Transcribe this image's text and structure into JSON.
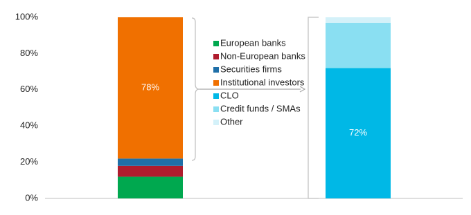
{
  "chart_data": {
    "type": "stacked-bar",
    "categories": [
      null,
      null
    ],
    "series": [
      {
        "name": "European banks",
        "color": "#00a84f",
        "values": [
          12,
          0
        ]
      },
      {
        "name": "Non-European banks",
        "color": "#b01c2e",
        "values": [
          6,
          0
        ]
      },
      {
        "name": "Securities firms",
        "color": "#1f6fa8",
        "values": [
          4,
          0
        ]
      },
      {
        "name": "Institutional investors",
        "color": "#f07000",
        "values": [
          78,
          0
        ],
        "value_labels": [
          "78%",
          null
        ]
      },
      {
        "name": "CLO",
        "color": "#00b8e6",
        "values": [
          0,
          72
        ],
        "value_labels": [
          null,
          "72%"
        ]
      },
      {
        "name": "Credit funds / SMAs",
        "color": "#8adff2",
        "values": [
          0,
          25
        ]
      },
      {
        "name": "Other",
        "color": "#d4f1f9",
        "values": [
          0,
          3
        ]
      }
    ],
    "ylim": [
      0,
      100
    ],
    "yticks": [
      {
        "value": 0,
        "label": "0%"
      },
      {
        "value": 20,
        "label": "20%"
      },
      {
        "value": 40,
        "label": "40%"
      },
      {
        "value": 60,
        "label": "60%"
      },
      {
        "value": 80,
        "label": "80%"
      },
      {
        "value": 100,
        "label": "100%"
      }
    ],
    "grid": false
  }
}
